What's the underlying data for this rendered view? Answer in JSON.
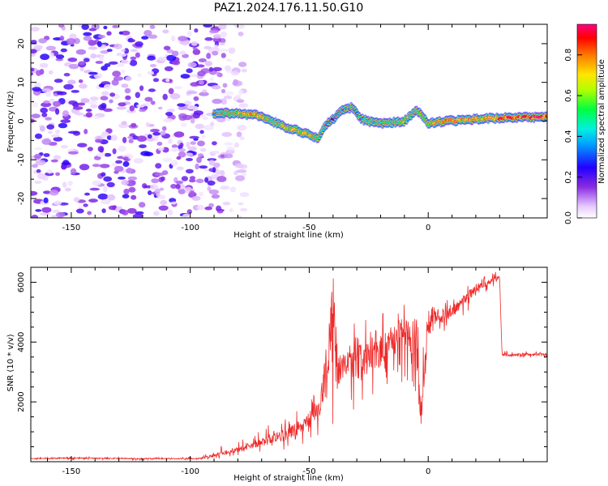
{
  "figure": {
    "title": "PAZ1.2024.176.11.50.G10"
  },
  "colors": {
    "snr_line": "#ee2a2a",
    "axis": "#000000",
    "background": "#ffffff",
    "colormap": [
      "#ffffff",
      "#e9d4ff",
      "#c9a0ff",
      "#8a2be2",
      "#6a00ff",
      "#0000ff",
      "#00c8ff",
      "#00ff80",
      "#ffe600",
      "#ff7a00",
      "#ff0000"
    ]
  },
  "chart_data": [
    {
      "type": "heatmap",
      "title": "",
      "xlabel": "Height of straight line (km)",
      "ylabel": "Frequency (Hz)",
      "xlim": [
        -167,
        50
      ],
      "ylim": [
        -25,
        25
      ],
      "x_ticks": [
        -150,
        -100,
        -50,
        0
      ],
      "y_ticks": [
        -20,
        -10,
        0,
        10,
        20
      ],
      "grid": false,
      "colorbar": {
        "label": "Normalized spectral amplitude",
        "range": [
          0,
          0.95
        ],
        "ticks": [
          "0.0",
          "0.2",
          "0.4",
          "0.6",
          "0.8"
        ]
      },
      "ridge": {
        "description_free": true,
        "x": [
          -90,
          -80,
          -72,
          -66,
          -60,
          -55,
          -50,
          -46,
          -43,
          -40,
          -36,
          -32,
          -28,
          -22,
          -16,
          -10,
          -5,
          0,
          8,
          20,
          35,
          50
        ],
        "frequency": [
          2,
          2,
          1.5,
          0,
          -1.5,
          -2.5,
          -3.5,
          -4.5,
          -1,
          0.5,
          3,
          3.5,
          0.5,
          -0.5,
          -0.5,
          0,
          3,
          -0.5,
          0,
          0.5,
          1,
          1
        ],
        "amplitude": [
          0.4,
          0.6,
          0.8,
          0.5,
          0.7,
          0.6,
          0.7,
          0.5,
          0.4,
          0.3,
          0.4,
          0.5,
          0.4,
          0.5,
          0.5,
          0.6,
          0.5,
          0.6,
          0.8,
          0.7,
          0.9,
          0.9
        ]
      },
      "noise_region": {
        "x_from": -167,
        "x_to": -85,
        "frequency_from": -25,
        "frequency_to": 25,
        "max_amplitude": 0.25
      }
    },
    {
      "type": "line",
      "title": "",
      "xlabel": "Height of straight line (km)",
      "ylabel": "SNR (10 * v/v)",
      "xlim": [
        -167,
        50
      ],
      "ylim": [
        0,
        6500
      ],
      "x_ticks": [
        -150,
        -100,
        -50,
        0
      ],
      "y_ticks": [
        2000,
        4000,
        6000
      ],
      "grid": false,
      "series": [
        {
          "x": [
            -167,
            -150,
            -130,
            -110,
            -95,
            -88,
            -80,
            -70,
            -60,
            -55,
            -50,
            -45,
            -42,
            -40,
            -38,
            -35,
            -30,
            -25,
            -20,
            -15,
            -10,
            -5,
            -3,
            0,
            5,
            10,
            15,
            20,
            25,
            28,
            30,
            31,
            35,
            40,
            45,
            50
          ],
          "y": [
            100,
            120,
            110,
            100,
            110,
            250,
            400,
            650,
            900,
            1100,
            1400,
            2000,
            3500,
            5500,
            3000,
            3200,
            3300,
            3600,
            3700,
            4000,
            4400,
            3800,
            1500,
            4500,
            4900,
            5000,
            5400,
            5800,
            6000,
            6100,
            6150,
            3600,
            3550,
            3600,
            3580,
            3600
          ],
          "envelope_high": [
            150,
            170,
            160,
            150,
            180,
            500,
            700,
            1100,
            1600,
            1700,
            2200,
            3000,
            6400,
            6400,
            4500,
            4700,
            4900,
            5000,
            5000,
            5100,
            5300,
            5000,
            4700,
            5200,
            5400,
            5500,
            5800,
            6100,
            6300,
            6350,
            6400,
            3700,
            3680,
            3700,
            3690,
            3700
          ],
          "envelope_low": [
            50,
            60,
            55,
            50,
            60,
            100,
            200,
            300,
            400,
            500,
            600,
            700,
            1000,
            1200,
            1200,
            1400,
            1600,
            1800,
            2000,
            2300,
            2600,
            2300,
            1500,
            3200,
            3800,
            4300,
            4900,
            5300,
            5700,
            5800,
            5900,
            3450,
            3450,
            3480,
            3460,
            3480
          ]
        }
      ]
    }
  ]
}
